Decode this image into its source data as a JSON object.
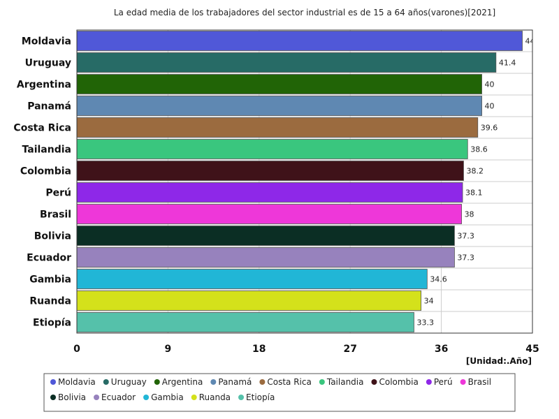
{
  "chart_data": {
    "type": "bar",
    "orientation": "horizontal",
    "title": "La edad media de los trabajadores del sector industrial es de 15 a 64 años(varones)[2021]",
    "unit": "[Unidad:.Año]",
    "xlim": [
      0,
      45
    ],
    "ticks": [
      0,
      9,
      18,
      27,
      36,
      45
    ],
    "grid": true,
    "legend_position": "bottom",
    "categories": [
      "Moldavia",
      "Uruguay",
      "Argentina",
      "Panamá",
      "Costa Rica",
      "Tailandia",
      "Colombia",
      "Perú",
      "Brasil",
      "Bolivia",
      "Ecuador",
      "Gambia",
      "Ruanda",
      "Etiopía"
    ],
    "values": [
      44,
      41.4,
      40,
      40,
      39.6,
      38.6,
      38.2,
      38.1,
      38,
      37.3,
      37.3,
      34.6,
      34,
      33.3
    ],
    "colors": [
      "#5058d8",
      "#276b66",
      "#216406",
      "#5f88b2",
      "#9b6b3f",
      "#3ac67e",
      "#3f1219",
      "#8e28e8",
      "#ee37d9",
      "#0b2e24",
      "#9782bd",
      "#21b6d6",
      "#d4e11b",
      "#55c1aa"
    ]
  }
}
